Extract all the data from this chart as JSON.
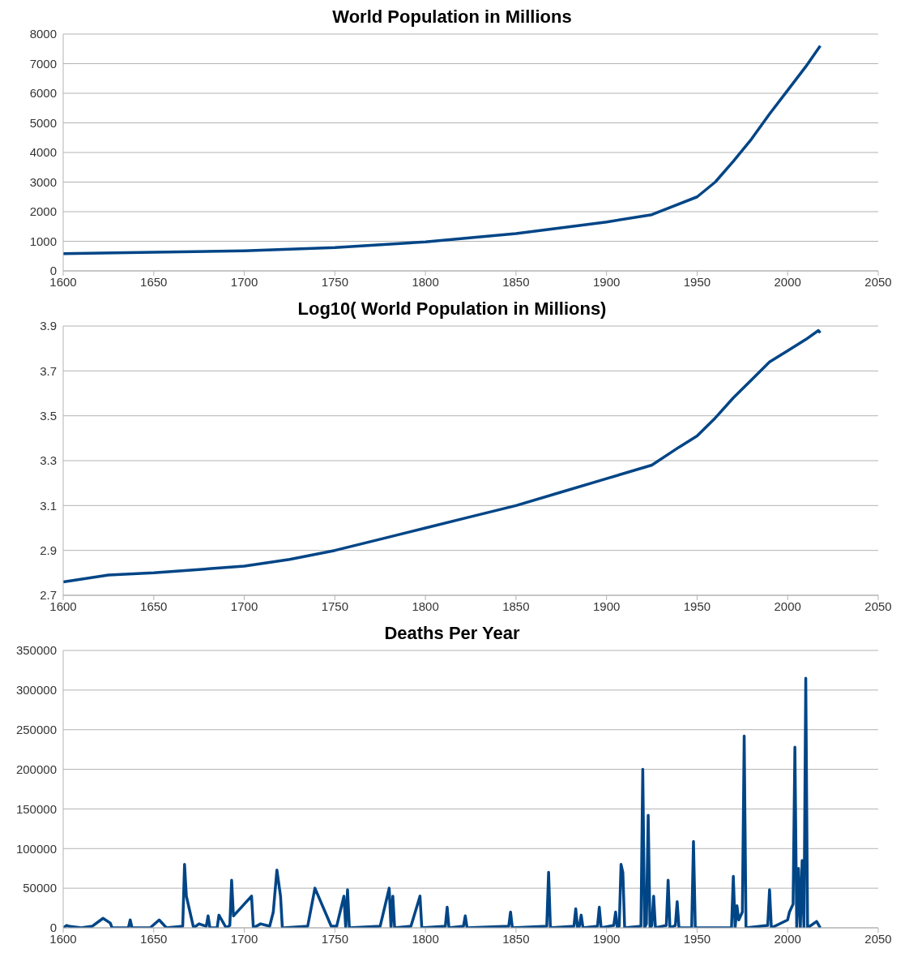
{
  "chart_data": [
    {
      "type": "line",
      "title": "World Population in Millions",
      "color": "#004586",
      "x": [
        1600,
        1650,
        1700,
        1750,
        1800,
        1850,
        1900,
        1925,
        1950,
        1960,
        1970,
        1980,
        1990,
        2000,
        2010,
        2018
      ],
      "values": [
        580,
        630,
        680,
        790,
        980,
        1260,
        1650,
        1900,
        2500,
        3000,
        3700,
        4450,
        5300,
        6100,
        6900,
        7600
      ],
      "xlim": [
        1600,
        2050
      ],
      "xticks": [
        1600,
        1650,
        1700,
        1750,
        1800,
        1850,
        1900,
        1950,
        2000,
        2050
      ],
      "ylim": [
        0,
        8000
      ],
      "yticks": [
        0,
        1000,
        2000,
        3000,
        4000,
        5000,
        6000,
        7000,
        8000
      ],
      "grid": "y",
      "marker": "none",
      "line_style": "solid"
    },
    {
      "type": "line",
      "title": "Log10( World Population in Millions)",
      "color": "#004586",
      "x": [
        1600,
        1625,
        1650,
        1675,
        1700,
        1725,
        1750,
        1775,
        1800,
        1825,
        1850,
        1875,
        1900,
        1925,
        1940,
        1950,
        1960,
        1970,
        1980,
        1990,
        2000,
        2010,
        2017,
        2018
      ],
      "values": [
        2.76,
        2.79,
        2.8,
        2.815,
        2.83,
        2.86,
        2.9,
        2.95,
        3.0,
        3.05,
        3.1,
        3.16,
        3.22,
        3.28,
        3.36,
        3.41,
        3.49,
        3.58,
        3.66,
        3.74,
        3.79,
        3.84,
        3.88,
        3.87
      ],
      "xlim": [
        1600,
        2050
      ],
      "xticks": [
        1600,
        1650,
        1700,
        1750,
        1800,
        1850,
        1900,
        1950,
        2000,
        2050
      ],
      "ylim": [
        2.7,
        3.9
      ],
      "yticks": [
        2.7,
        2.9,
        3.1,
        3.3,
        3.5,
        3.7,
        3.9
      ],
      "grid": "y",
      "marker": "none",
      "line_style": "solid"
    },
    {
      "type": "line",
      "title": "Deaths Per Year",
      "color": "#004586",
      "x": [
        1600,
        1602,
        1603,
        1610,
        1616,
        1622,
        1626,
        1627,
        1636,
        1637,
        1638,
        1648,
        1653,
        1657,
        1666,
        1667,
        1668,
        1672,
        1675,
        1679,
        1680,
        1681,
        1685,
        1686,
        1690,
        1692,
        1693,
        1694,
        1704,
        1705,
        1709,
        1714,
        1716,
        1718,
        1720,
        1721,
        1722,
        1735,
        1739,
        1748,
        1751,
        1755,
        1756,
        1757,
        1758,
        1775,
        1780,
        1781,
        1782,
        1783,
        1792,
        1797,
        1798,
        1811,
        1812,
        1813,
        1821,
        1822,
        1823,
        1846,
        1847,
        1848,
        1867,
        1868,
        1869,
        1882,
        1883,
        1884,
        1885,
        1886,
        1887,
        1895,
        1896,
        1897,
        1904,
        1905,
        1906,
        1907,
        1908,
        1909,
        1910,
        1919,
        1920,
        1921,
        1922,
        1923,
        1924,
        1925,
        1926,
        1927,
        1933,
        1934,
        1935,
        1938,
        1939,
        1940,
        1947,
        1948,
        1949,
        1969,
        1970,
        1971,
        1972,
        1973,
        1975,
        1976,
        1977,
        1989,
        1990,
        1991,
        2000,
        2001,
        2003,
        2004,
        2005,
        2006,
        2007,
        2008,
        2009,
        2010,
        2011,
        2016,
        2018
      ],
      "values": [
        0,
        3000,
        2000,
        0,
        2000,
        12000,
        6000,
        0,
        0,
        10000,
        0,
        0,
        10000,
        0,
        2000,
        80000,
        40000,
        0,
        5000,
        2000,
        15000,
        0,
        0,
        16000,
        0,
        3000,
        60000,
        15000,
        40000,
        0,
        5000,
        2000,
        20000,
        73000,
        40000,
        0,
        0,
        2000,
        50000,
        2000,
        2000,
        40000,
        0,
        48000,
        0,
        2000,
        50000,
        0,
        40000,
        0,
        2000,
        40000,
        0,
        2000,
        26000,
        0,
        2000,
        15000,
        0,
        2000,
        20000,
        0,
        2000,
        70000,
        0,
        2000,
        24000,
        0,
        2000,
        16000,
        0,
        2000,
        26000,
        0,
        3000,
        20000,
        0,
        2000,
        80000,
        70000,
        0,
        2000,
        200000,
        0,
        5000,
        142000,
        0,
        3000,
        40000,
        0,
        3000,
        60000,
        0,
        3000,
        33000,
        0,
        0,
        109000,
        0,
        0,
        65000,
        0,
        28000,
        10000,
        20000,
        242000,
        0,
        3000,
        48000,
        0,
        10000,
        20000,
        30000,
        228000,
        0,
        75000,
        0,
        85000,
        0,
        315000,
        0,
        8000,
        0
      ],
      "xlim": [
        1600,
        2050
      ],
      "xticks": [
        1600,
        1650,
        1700,
        1750,
        1800,
        1850,
        1900,
        1950,
        2000,
        2050
      ],
      "ylim": [
        0,
        350000
      ],
      "yticks": [
        0,
        50000,
        100000,
        150000,
        200000,
        250000,
        300000,
        350000
      ],
      "grid": "y",
      "marker": "none",
      "line_style": "solid"
    }
  ]
}
